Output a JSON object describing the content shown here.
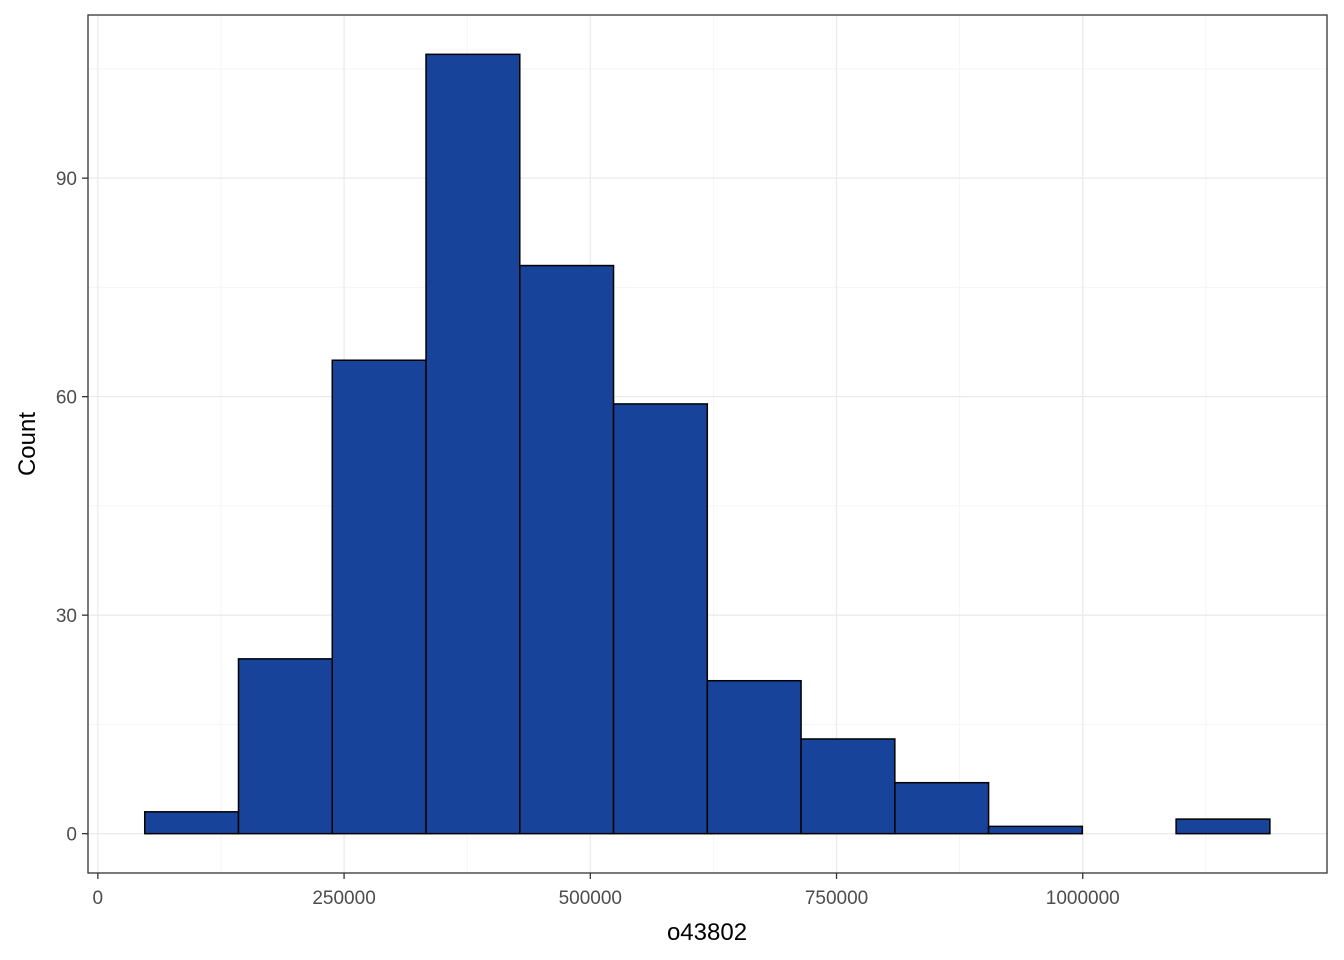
{
  "chart_data": {
    "type": "bar",
    "subtype": "histogram",
    "title": "",
    "xlabel": "o43802",
    "ylabel": "Count",
    "bins": [
      {
        "x_start": 47600,
        "x_end": 142800,
        "count": 3
      },
      {
        "x_start": 142800,
        "x_end": 238000,
        "count": 24
      },
      {
        "x_start": 238000,
        "x_end": 333200,
        "count": 65
      },
      {
        "x_start": 333200,
        "x_end": 428400,
        "count": 107
      },
      {
        "x_start": 428400,
        "x_end": 523600,
        "count": 78
      },
      {
        "x_start": 523600,
        "x_end": 618800,
        "count": 59
      },
      {
        "x_start": 618800,
        "x_end": 714000,
        "count": 21
      },
      {
        "x_start": 714000,
        "x_end": 809200,
        "count": 13
      },
      {
        "x_start": 809200,
        "x_end": 904400,
        "count": 7
      },
      {
        "x_start": 904400,
        "x_end": 999600,
        "count": 1
      },
      {
        "x_start": 999600,
        "x_end": 1094800,
        "count": 0
      },
      {
        "x_start": 1094800,
        "x_end": 1190000,
        "count": 2
      }
    ],
    "xlim": [
      -10000,
      1248000
    ],
    "ylim": [
      -5.4,
      112.4
    ],
    "x_ticks": [
      0,
      250000,
      500000,
      750000,
      1000000
    ],
    "x_tick_labels": [
      "0",
      "250000",
      "500000",
      "750000",
      "1000000"
    ],
    "y_ticks": [
      0,
      30,
      60,
      90
    ],
    "y_tick_labels": [
      "0",
      "30",
      "60",
      "90"
    ],
    "grid": true,
    "colors": {
      "bar_fill": "#17439A",
      "bar_stroke": "#000000",
      "grid_major": "#EBEBEB",
      "grid_minor": "#F5F5F5",
      "panel_border": "#333333"
    }
  }
}
